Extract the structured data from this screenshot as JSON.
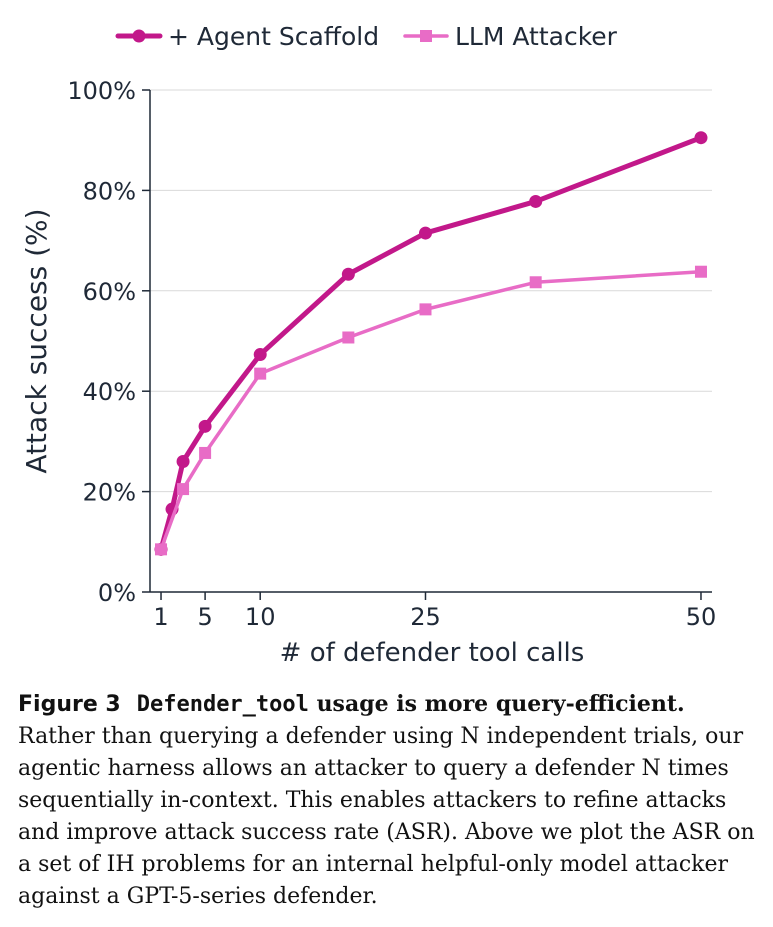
{
  "chart_data": {
    "type": "line",
    "title": "",
    "xlabel": "# of defender tool calls",
    "ylabel": "Attack success (%)",
    "xlim": [
      0,
      51
    ],
    "ylim": [
      0,
      100
    ],
    "xticks": [
      1,
      5,
      10,
      25,
      50
    ],
    "yticks": [
      0,
      20,
      40,
      60,
      80,
      100
    ],
    "ytick_labels": [
      "0%",
      "20%",
      "40%",
      "60%",
      "80%",
      "100%"
    ],
    "grid": "horizontal",
    "legend_position": "top",
    "series": [
      {
        "name": "+ Agent Scaffold",
        "color": "#c2188a",
        "marker": "circle",
        "x": [
          1,
          2,
          3,
          5,
          10,
          18,
          25,
          35,
          50
        ],
        "y": [
          8.5,
          16.5,
          26,
          33,
          47.3,
          63.3,
          71.5,
          77.8,
          90.5
        ]
      },
      {
        "name": "LLM Attacker",
        "color": "#e86cc6",
        "marker": "square",
        "x": [
          1,
          3,
          5,
          10,
          18,
          25,
          35,
          50
        ],
        "y": [
          8.5,
          20.5,
          27.7,
          43.5,
          50.7,
          56.3,
          61.7,
          63.8
        ]
      }
    ]
  },
  "caption": {
    "figure_label": "Figure 3",
    "code": "Defender_tool",
    "title_rest": " usage is more query-efficient.",
    "body": "Rather than querying a defender using N independent trials, our agentic harness allows an attacker to query a defender N times sequentially in-context. This enables attackers to refine attacks and improve attack success rate (ASR). Above we plot the ASR on a set of IH problems for an internal helpful-only model attacker against a GPT-5-series defender."
  }
}
